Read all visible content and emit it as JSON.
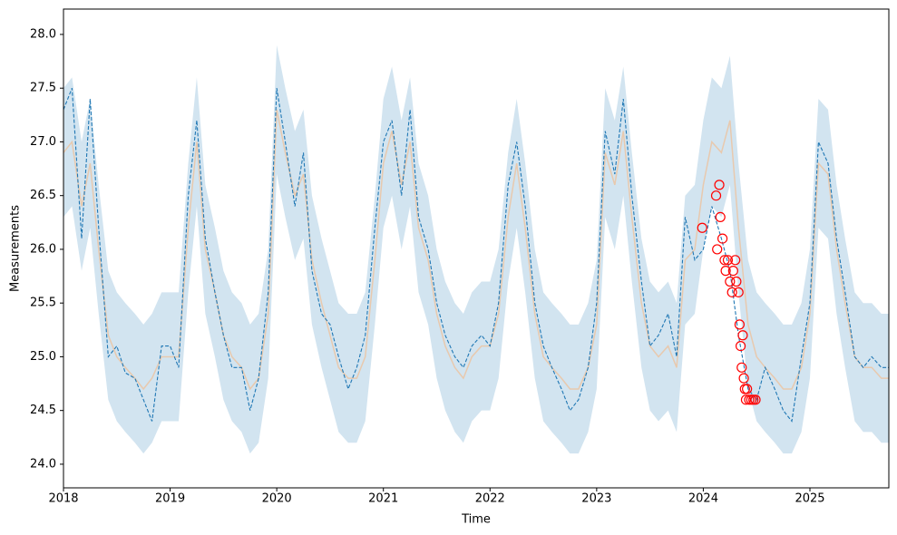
{
  "chart_data": {
    "type": "line",
    "xlabel": "Time",
    "ylabel": "Measurements",
    "xlim": [
      2018,
      2025.74
    ],
    "ylim": [
      23.78,
      28.236
    ],
    "xticks": [
      2018,
      2019,
      2020,
      2021,
      2022,
      2023,
      2024,
      2025
    ],
    "yticks": [
      {
        "value": 24,
        "label": "24.0"
      },
      {
        "value": 24.5,
        "label": "24.5"
      },
      {
        "value": 25,
        "label": "25.0"
      },
      {
        "value": 25.5,
        "label": "25.5"
      },
      {
        "value": 26,
        "label": "26.0"
      },
      {
        "value": 26.5,
        "label": "26.5"
      },
      {
        "value": 27,
        "label": "27.0"
      },
      {
        "value": 27.5,
        "label": "27.5"
      },
      {
        "value": 28,
        "label": "28.0"
      }
    ],
    "x": [
      2018.0,
      2018.08,
      2018.17,
      2018.25,
      2018.33,
      2018.42,
      2018.5,
      2018.58,
      2018.67,
      2018.75,
      2018.83,
      2018.92,
      2019.0,
      2019.08,
      2019.17,
      2019.25,
      2019.33,
      2019.42,
      2019.5,
      2019.58,
      2019.67,
      2019.75,
      2019.83,
      2019.92,
      2020.0,
      2020.08,
      2020.17,
      2020.25,
      2020.33,
      2020.42,
      2020.5,
      2020.58,
      2020.67,
      2020.75,
      2020.83,
      2020.92,
      2021.0,
      2021.08,
      2021.17,
      2021.25,
      2021.33,
      2021.42,
      2021.5,
      2021.58,
      2021.67,
      2021.75,
      2021.83,
      2021.92,
      2022.0,
      2022.08,
      2022.17,
      2022.25,
      2022.33,
      2022.42,
      2022.5,
      2022.58,
      2022.67,
      2022.75,
      2022.83,
      2022.92,
      2023.0,
      2023.08,
      2023.17,
      2023.25,
      2023.33,
      2023.42,
      2023.5,
      2023.58,
      2023.67,
      2023.75,
      2023.83,
      2023.92,
      2024.0,
      2024.08,
      2024.17,
      2024.25,
      2024.33,
      2024.42,
      2024.5,
      2024.58,
      2024.67,
      2024.75,
      2024.83,
      2024.92,
      2025.0,
      2025.08,
      2025.17,
      2025.25,
      2025.33,
      2025.42,
      2025.5,
      2025.58,
      2025.67,
      2025.74
    ],
    "band": {
      "color": "#1f77b4",
      "opacity": 0.2,
      "lower": [
        26.3,
        26.4,
        25.8,
        26.2,
        25.4,
        24.6,
        24.4,
        24.3,
        24.2,
        24.1,
        24.2,
        24.4,
        24.4,
        24.4,
        25.6,
        26.4,
        25.4,
        25.0,
        24.6,
        24.4,
        24.3,
        24.1,
        24.2,
        24.8,
        26.7,
        26.3,
        25.9,
        26.1,
        25.3,
        24.9,
        24.6,
        24.3,
        24.2,
        24.2,
        24.4,
        25.3,
        26.2,
        26.5,
        26.0,
        26.4,
        25.6,
        25.3,
        24.8,
        24.5,
        24.3,
        24.2,
        24.4,
        24.5,
        24.5,
        24.8,
        25.7,
        26.2,
        25.6,
        24.8,
        24.4,
        24.3,
        24.2,
        24.1,
        24.1,
        24.3,
        24.7,
        26.3,
        26.0,
        26.5,
        25.7,
        24.9,
        24.5,
        24.4,
        24.5,
        24.3,
        25.3,
        25.4,
        26.0,
        26.4,
        26.3,
        26.6,
        25.6,
        24.7,
        24.4,
        24.3,
        24.2,
        24.1,
        24.1,
        24.3,
        24.8,
        26.2,
        26.1,
        25.4,
        24.9,
        24.4,
        24.3,
        24.3,
        24.2,
        24.2
      ],
      "upper": [
        27.5,
        27.6,
        27.0,
        27.4,
        26.6,
        25.8,
        25.6,
        25.5,
        25.4,
        25.3,
        25.4,
        25.6,
        25.6,
        25.6,
        26.8,
        27.6,
        26.6,
        26.2,
        25.8,
        25.6,
        25.5,
        25.3,
        25.4,
        26.0,
        27.9,
        27.5,
        27.1,
        27.3,
        26.5,
        26.1,
        25.8,
        25.5,
        25.4,
        25.4,
        25.6,
        26.5,
        27.4,
        27.7,
        27.2,
        27.6,
        26.8,
        26.5,
        26.0,
        25.7,
        25.5,
        25.4,
        25.6,
        25.7,
        25.7,
        26.0,
        26.9,
        27.4,
        26.8,
        26.0,
        25.6,
        25.5,
        25.4,
        25.3,
        25.3,
        25.5,
        25.9,
        27.5,
        27.2,
        27.7,
        26.9,
        26.1,
        25.7,
        25.6,
        25.7,
        25.5,
        26.5,
        26.6,
        27.2,
        27.6,
        27.5,
        27.8,
        26.8,
        25.9,
        25.6,
        25.5,
        25.4,
        25.3,
        25.3,
        25.5,
        26.0,
        27.4,
        27.3,
        26.6,
        26.1,
        25.6,
        25.5,
        25.5,
        25.4,
        25.4
      ]
    },
    "series": [
      {
        "color": "#e8c9ae",
        "style": "solid",
        "values": [
          26.9,
          27.0,
          26.4,
          26.8,
          26.0,
          25.2,
          25.0,
          24.9,
          24.8,
          24.7,
          24.8,
          25.0,
          25.0,
          25.0,
          26.2,
          27.0,
          26.0,
          25.6,
          25.2,
          25.0,
          24.9,
          24.7,
          24.8,
          25.4,
          27.3,
          26.9,
          26.5,
          26.7,
          25.9,
          25.5,
          25.2,
          24.9,
          24.8,
          24.8,
          25.0,
          25.9,
          26.8,
          27.1,
          26.6,
          27.0,
          26.2,
          25.9,
          25.4,
          25.1,
          24.9,
          24.8,
          25.0,
          25.1,
          25.1,
          25.4,
          26.3,
          26.8,
          26.2,
          25.4,
          25.0,
          24.9,
          24.8,
          24.7,
          24.7,
          24.9,
          25.3,
          26.9,
          26.6,
          27.1,
          26.3,
          25.5,
          25.1,
          25.0,
          25.1,
          24.9,
          25.9,
          26.0,
          26.6,
          27.0,
          26.9,
          27.2,
          26.2,
          25.3,
          25.0,
          24.9,
          24.8,
          24.7,
          24.7,
          24.9,
          25.4,
          26.8,
          26.7,
          26.0,
          25.5,
          25.0,
          24.9,
          24.9,
          24.8,
          24.8
        ]
      },
      {
        "color": "#1f77b4",
        "style": "dashed",
        "values": [
          27.3,
          27.5,
          26.1,
          27.4,
          26.2,
          25.0,
          25.1,
          24.85,
          24.8,
          24.6,
          24.4,
          25.1,
          25.1,
          24.9,
          26.5,
          27.2,
          26.1,
          25.6,
          25.2,
          24.9,
          24.9,
          24.5,
          24.8,
          25.6,
          27.5,
          27.0,
          26.4,
          26.9,
          25.8,
          25.4,
          25.3,
          25.0,
          24.7,
          24.9,
          25.2,
          26.2,
          27.0,
          27.2,
          26.5,
          27.3,
          26.3,
          26.0,
          25.5,
          25.2,
          25.0,
          24.9,
          25.1,
          25.2,
          25.1,
          25.5,
          26.6,
          27.0,
          26.4,
          25.5,
          25.1,
          24.9,
          24.7,
          24.5,
          24.6,
          24.9,
          25.5,
          27.1,
          26.7,
          27.4,
          26.5,
          25.7,
          25.1,
          25.2,
          25.4,
          25.0,
          26.3,
          25.9,
          26.0,
          26.4,
          26.1,
          25.8,
          25.2,
          24.7,
          24.6,
          24.9,
          24.7,
          24.5,
          24.4,
          25.0,
          25.5,
          27.0,
          26.8,
          26.1,
          25.6,
          25.0,
          24.9,
          25.0,
          24.9,
          24.9
        ]
      }
    ],
    "points": {
      "color": "#ff0000",
      "x": [
        2023.99,
        2024.12,
        2024.13,
        2024.15,
        2024.16,
        2024.18,
        2024.2,
        2024.21,
        2024.23,
        2024.25,
        2024.27,
        2024.28,
        2024.3,
        2024.31,
        2024.33,
        2024.34,
        2024.35,
        2024.36,
        2024.37,
        2024.38,
        2024.39,
        2024.4,
        2024.41,
        2024.43,
        2024.45,
        2024.47,
        2024.49
      ],
      "y": [
        26.2,
        26.5,
        26.0,
        26.6,
        26.3,
        26.1,
        25.9,
        25.8,
        25.9,
        25.7,
        25.6,
        25.8,
        25.9,
        25.7,
        25.6,
        25.3,
        25.1,
        24.9,
        25.2,
        24.8,
        24.7,
        24.6,
        24.7,
        24.6,
        24.6,
        24.6,
        24.6
      ]
    }
  }
}
